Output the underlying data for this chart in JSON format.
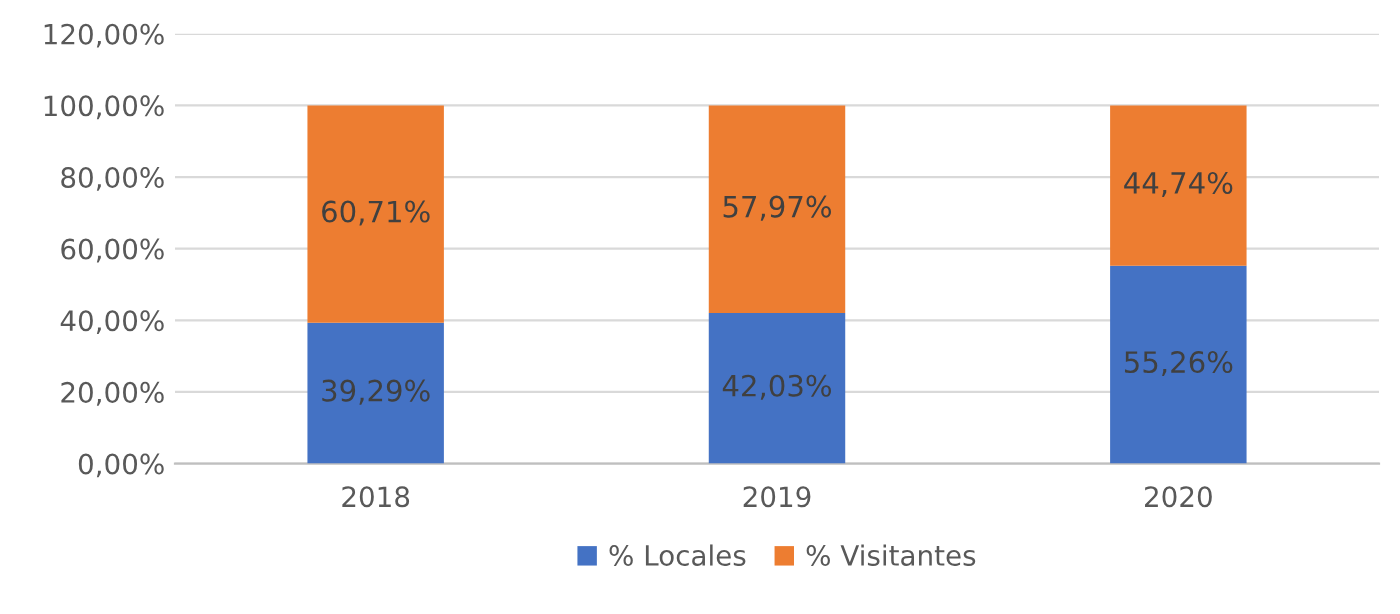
{
  "chart_data": {
    "type": "bar",
    "stacked": true,
    "categories": [
      "2018",
      "2019",
      "2020"
    ],
    "series": [
      {
        "name": "% Locales",
        "color": "#4472c4",
        "values": [
          39.29,
          42.03,
          55.26
        ],
        "value_labels": [
          "39,29%",
          "42,03%",
          "55,26%"
        ]
      },
      {
        "name": "% Visitantes",
        "color": "#ed7d31",
        "values": [
          60.71,
          57.97,
          44.74
        ],
        "value_labels": [
          "60,71%",
          "57,97%",
          "44,74%"
        ]
      }
    ],
    "ylim": [
      0,
      120
    ],
    "yticks": [
      {
        "value": 0,
        "label": "0,00%"
      },
      {
        "value": 20,
        "label": "20,00%"
      },
      {
        "value": 40,
        "label": "40,00%"
      },
      {
        "value": 60,
        "label": "60,00%"
      },
      {
        "value": 80,
        "label": "80,00%"
      },
      {
        "value": 100,
        "label": "100,00%"
      },
      {
        "value": 120,
        "label": "120,00%"
      }
    ],
    "grid": "y",
    "legend": "bottom"
  }
}
